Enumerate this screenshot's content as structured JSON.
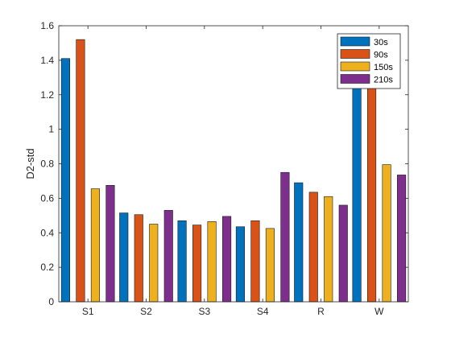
{
  "chart_data": {
    "type": "bar",
    "title": "",
    "xlabel": "",
    "ylabel": "D2-std",
    "ylim": [
      0,
      1.6
    ],
    "yticks": [
      0,
      0.2,
      0.4,
      0.6,
      0.8,
      1,
      1.2,
      1.4,
      1.6
    ],
    "grid": false,
    "legend_position": "top-right",
    "categories": [
      "S1",
      "S2",
      "S3",
      "S4",
      "R",
      "W"
    ],
    "series": [
      {
        "name": "30s",
        "color": "#0072BD",
        "values": [
          1.41,
          0.515,
          0.47,
          0.435,
          0.69,
          1.3
        ]
      },
      {
        "name": "90s",
        "color": "#D95319",
        "values": [
          1.52,
          0.505,
          0.445,
          0.47,
          0.635,
          1.3
        ]
      },
      {
        "name": "150s",
        "color": "#EDB120",
        "values": [
          0.655,
          0.45,
          0.465,
          0.425,
          0.61,
          0.795
        ]
      },
      {
        "name": "210s",
        "color": "#7E2F8E",
        "values": [
          0.675,
          0.53,
          0.495,
          0.75,
          0.56,
          0.735
        ]
      }
    ]
  }
}
